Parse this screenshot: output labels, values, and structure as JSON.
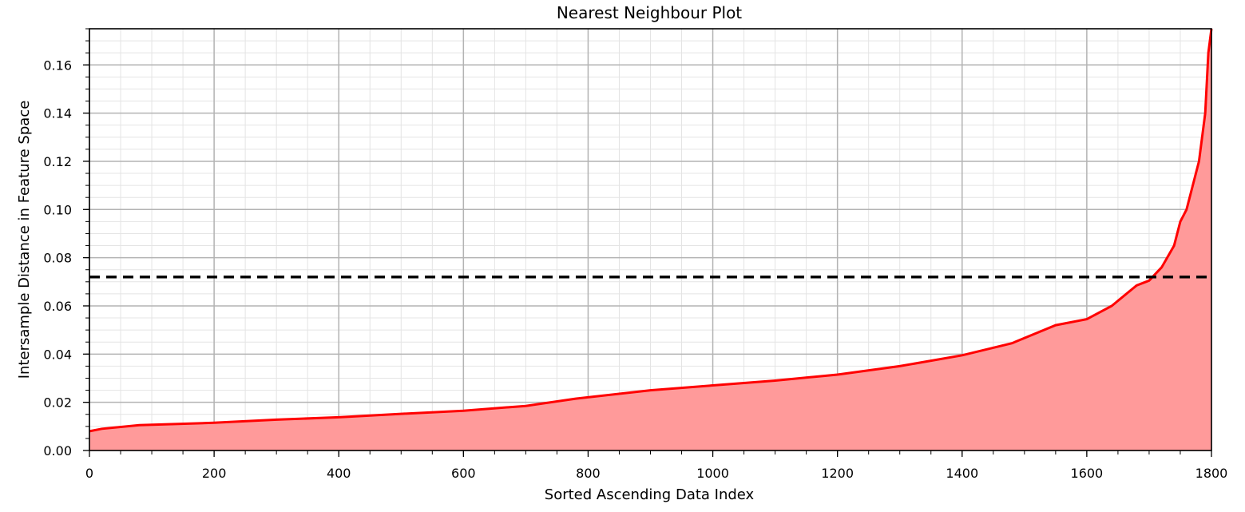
{
  "chart_data": {
    "type": "area",
    "title": "Nearest Neighbour Plot",
    "xlabel": "Sorted Ascending Data Index",
    "ylabel": "Intersample Distance in Feature Space",
    "xlim": [
      0,
      1800
    ],
    "ylim": [
      0,
      0.175
    ],
    "x_ticks": [
      0,
      200,
      400,
      600,
      800,
      1000,
      1200,
      1400,
      1600,
      1800
    ],
    "x_tick_labels": [
      "0",
      "200",
      "400",
      "600",
      "800",
      "1000",
      "1200",
      "1400",
      "1600",
      "1800"
    ],
    "y_ticks": [
      0,
      0.02,
      0.04,
      0.06,
      0.08,
      0.1,
      0.12,
      0.14,
      0.16
    ],
    "y_tick_labels": [
      "0.00",
      "0.02",
      "0.04",
      "0.06",
      "0.08",
      "0.10",
      "0.12",
      "0.14",
      "0.16"
    ],
    "grid": true,
    "minor_grid": true,
    "series": [
      {
        "color": "#ff0000",
        "fill_color": "#ff9a9a",
        "x": [
          0,
          20,
          80,
          200,
          300,
          400,
          500,
          600,
          700,
          780,
          900,
          1000,
          1100,
          1200,
          1300,
          1400,
          1480,
          1550,
          1600,
          1640,
          1680,
          1700,
          1720,
          1740,
          1750,
          1760,
          1770,
          1780,
          1790,
          1795,
          1800
        ],
        "values": [
          0.008,
          0.009,
          0.0105,
          0.0115,
          0.0128,
          0.0138,
          0.0152,
          0.0165,
          0.0185,
          0.0215,
          0.025,
          0.027,
          0.029,
          0.0315,
          0.035,
          0.0395,
          0.0445,
          0.052,
          0.0545,
          0.06,
          0.0685,
          0.0705,
          0.076,
          0.085,
          0.095,
          0.1,
          0.11,
          0.12,
          0.14,
          0.165,
          0.175
        ]
      }
    ],
    "threshold_line": {
      "y": 0.072,
      "style": "dashed",
      "color": "#000000"
    }
  }
}
